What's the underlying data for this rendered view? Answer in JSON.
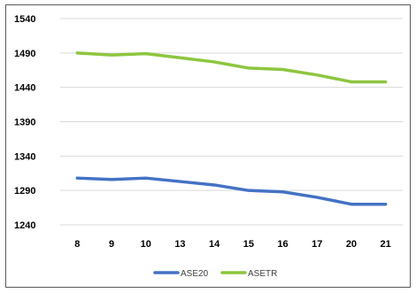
{
  "chart_data": {
    "type": "line",
    "title": "",
    "xlabel": "",
    "ylabel": "",
    "categories": [
      "8",
      "9",
      "10",
      "13",
      "14",
      "15",
      "16",
      "17",
      "20",
      "21"
    ],
    "ylim": [
      1240,
      1540
    ],
    "yticks": [
      1240,
      1290,
      1340,
      1390,
      1440,
      1490,
      1540
    ],
    "grid": true,
    "legend_position": "bottom",
    "series": [
      {
        "name": "ASE20",
        "color": "#4472C4",
        "values": [
          1308,
          1306,
          1308,
          1303,
          1298,
          1290,
          1288,
          1280,
          1270,
          1270
        ]
      },
      {
        "name": "ASETR",
        "color": "#8DC63F",
        "values": [
          1490,
          1487,
          1489,
          1483,
          1477,
          1468,
          1466,
          1458,
          1448,
          1448
        ]
      }
    ]
  }
}
